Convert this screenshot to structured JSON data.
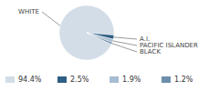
{
  "chart_data": {
    "type": "pie",
    "categories": [
      "WHITE",
      "A.I.",
      "PACIFIC ISLANDER",
      "BLACK"
    ],
    "values": [
      94.4,
      2.5,
      1.9,
      1.2
    ],
    "value_labels": [
      "94.4%",
      "2.5%",
      "1.9%",
      "1.2%"
    ],
    "colors": [
      "#d3dde7",
      "#2e5f84",
      "#a7bdd1",
      "#6e8fac"
    ],
    "legend": "bottom"
  }
}
